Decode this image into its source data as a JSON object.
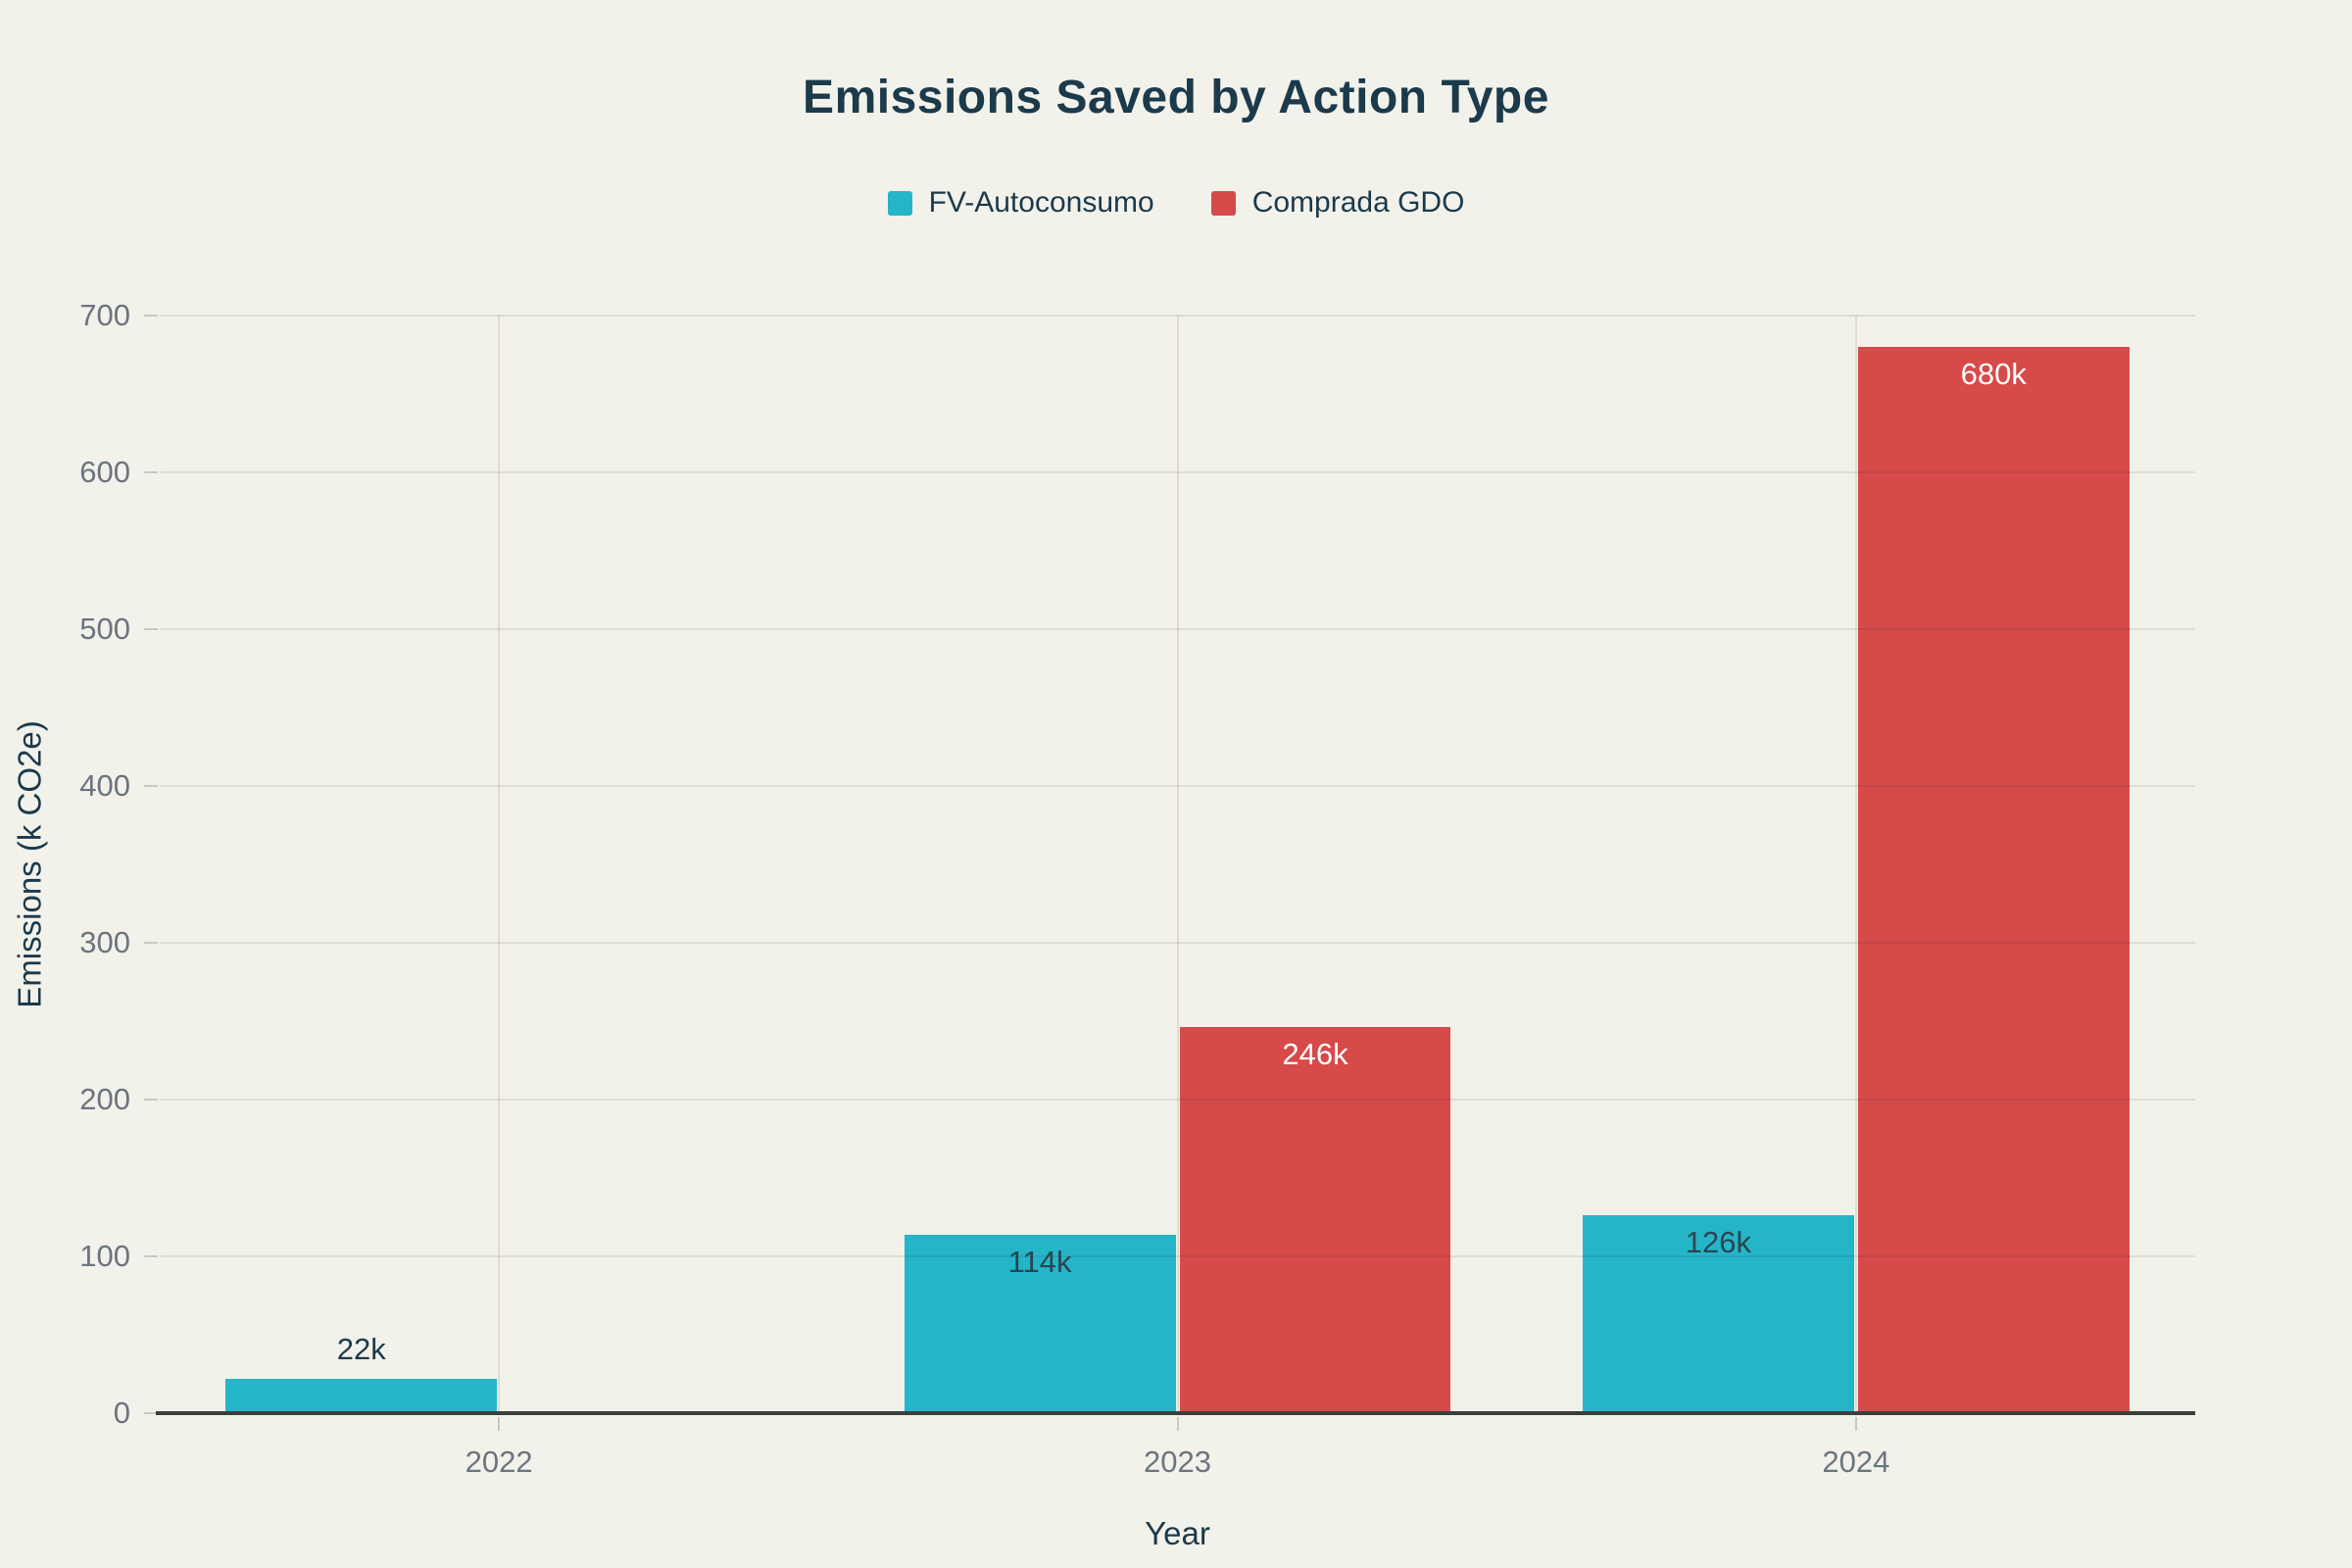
{
  "chart_data": {
    "type": "bar",
    "title": "Emissions Saved by Action Type",
    "xlabel": "Year",
    "ylabel": "Emissions (k CO2e)",
    "categories": [
      "2022",
      "2023",
      "2024"
    ],
    "series": [
      {
        "name": "FV-Autoconsumo",
        "color": "#25b5c8",
        "values": [
          22,
          114,
          126
        ],
        "labels": [
          "22k",
          "114k",
          "126k"
        ],
        "label_color": "#2b4450"
      },
      {
        "name": "Comprada GDO",
        "color": "#d64a4a",
        "values": [
          0,
          246,
          680
        ],
        "labels": [
          "",
          "246k",
          "680k"
        ],
        "label_color": "#ffffff"
      }
    ],
    "ylim": [
      0,
      700
    ],
    "yticks": [
      0,
      100,
      200,
      300,
      400,
      500,
      600,
      700
    ],
    "grid": true,
    "legend_position": "top",
    "bar_width_fraction": 0.4
  },
  "colors": {
    "background": "#f2f1ea",
    "title_text": "#1b3a4b",
    "tick_label_text": "#6c757e",
    "axis_line": "#3a3f3c",
    "gridline": "#dedcd4"
  }
}
